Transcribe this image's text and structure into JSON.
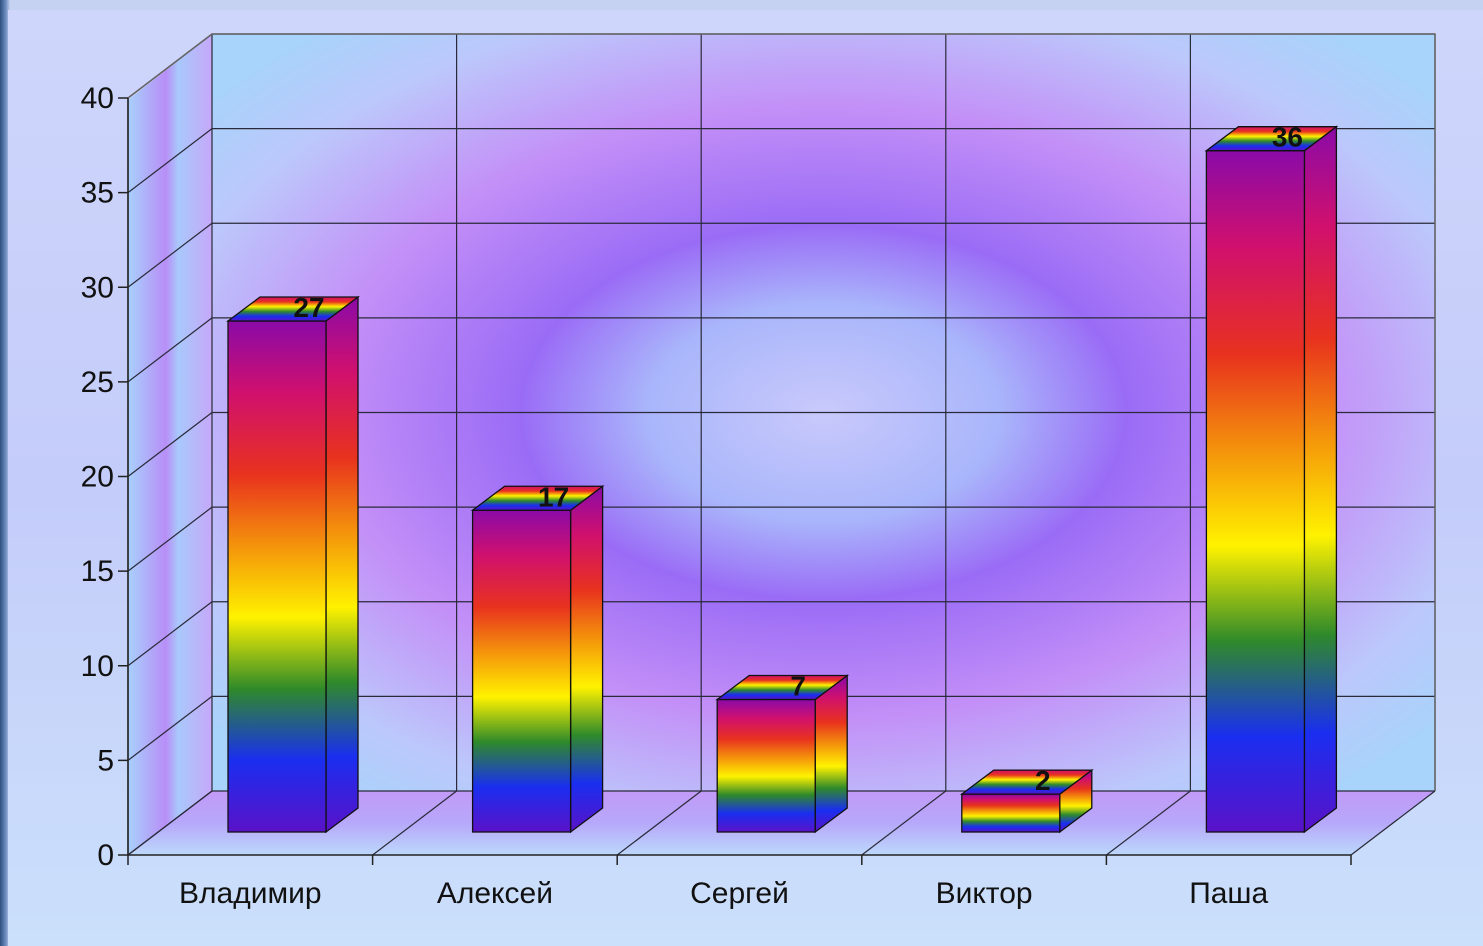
{
  "chart_data": {
    "type": "bar",
    "categories": [
      "Владимир",
      "Алексей",
      "Сергей",
      "Виктор",
      "Паша"
    ],
    "values": [
      27,
      17,
      7,
      2,
      36
    ],
    "data_labels": [
      "27",
      "17",
      "7",
      "2",
      "36"
    ],
    "y_ticks": [
      "0",
      "5",
      "10",
      "15",
      "20",
      "25",
      "30",
      "35",
      "40"
    ],
    "ylim": [
      0,
      40
    ],
    "grid": true,
    "style": "3d-rainbow-gradient",
    "colors": {
      "rainbow": [
        "#8a0aa8",
        "#d0106e",
        "#e8321e",
        "#f59a0a",
        "#fff200",
        "#2f8a2a",
        "#1a2ef0",
        "#5a12c8"
      ],
      "grid": "#2a2a3a",
      "wall_center": "#c8b8ff",
      "wall_mid": "#a57af7",
      "wall_outer": "#b9d2fb"
    }
  }
}
